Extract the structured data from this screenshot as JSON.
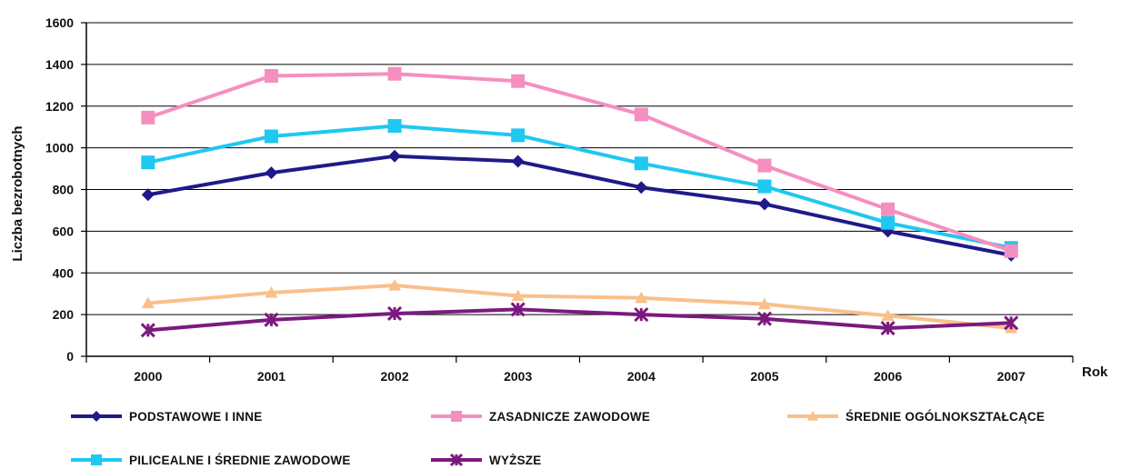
{
  "chart_data": {
    "type": "line",
    "title": "",
    "xlabel": "Rok",
    "ylabel": "Liczba bezrobotnych",
    "categories": [
      "2000",
      "2001",
      "2002",
      "2003",
      "2004",
      "2005",
      "2006",
      "2007"
    ],
    "ylim": [
      0,
      1600
    ],
    "yticks": [
      "0",
      "200",
      "400",
      "600",
      "800",
      "1000",
      "1200",
      "1400",
      "1600"
    ],
    "grid": true,
    "legend_position": "bottom",
    "series": [
      {
        "name": "PODSTAWOWE I INNE",
        "color": "#1f1a8a",
        "marker": "diamond",
        "values": [
          775,
          880,
          960,
          935,
          810,
          730,
          600,
          485
        ]
      },
      {
        "name": "ZASADNICZE ZAWODOWE",
        "color": "#f58fc0",
        "marker": "square",
        "values": [
          1145,
          1345,
          1355,
          1320,
          1160,
          915,
          705,
          505
        ]
      },
      {
        "name": "ŚREDNIE OGÓLNOKSZTAŁCĄCE",
        "color": "#f9c08a",
        "marker": "triangle",
        "values": [
          255,
          305,
          340,
          290,
          280,
          250,
          195,
          135
        ]
      },
      {
        "name": "PILICEALNE I ŚREDNIE ZAWODOWE",
        "color": "#1fc8f0",
        "marker": "square",
        "values": [
          930,
          1055,
          1105,
          1060,
          925,
          815,
          640,
          520
        ]
      },
      {
        "name": "WYŻSZE",
        "color": "#7b1a7e",
        "marker": "star",
        "values": [
          125,
          175,
          205,
          225,
          200,
          180,
          135,
          160
        ]
      }
    ]
  }
}
